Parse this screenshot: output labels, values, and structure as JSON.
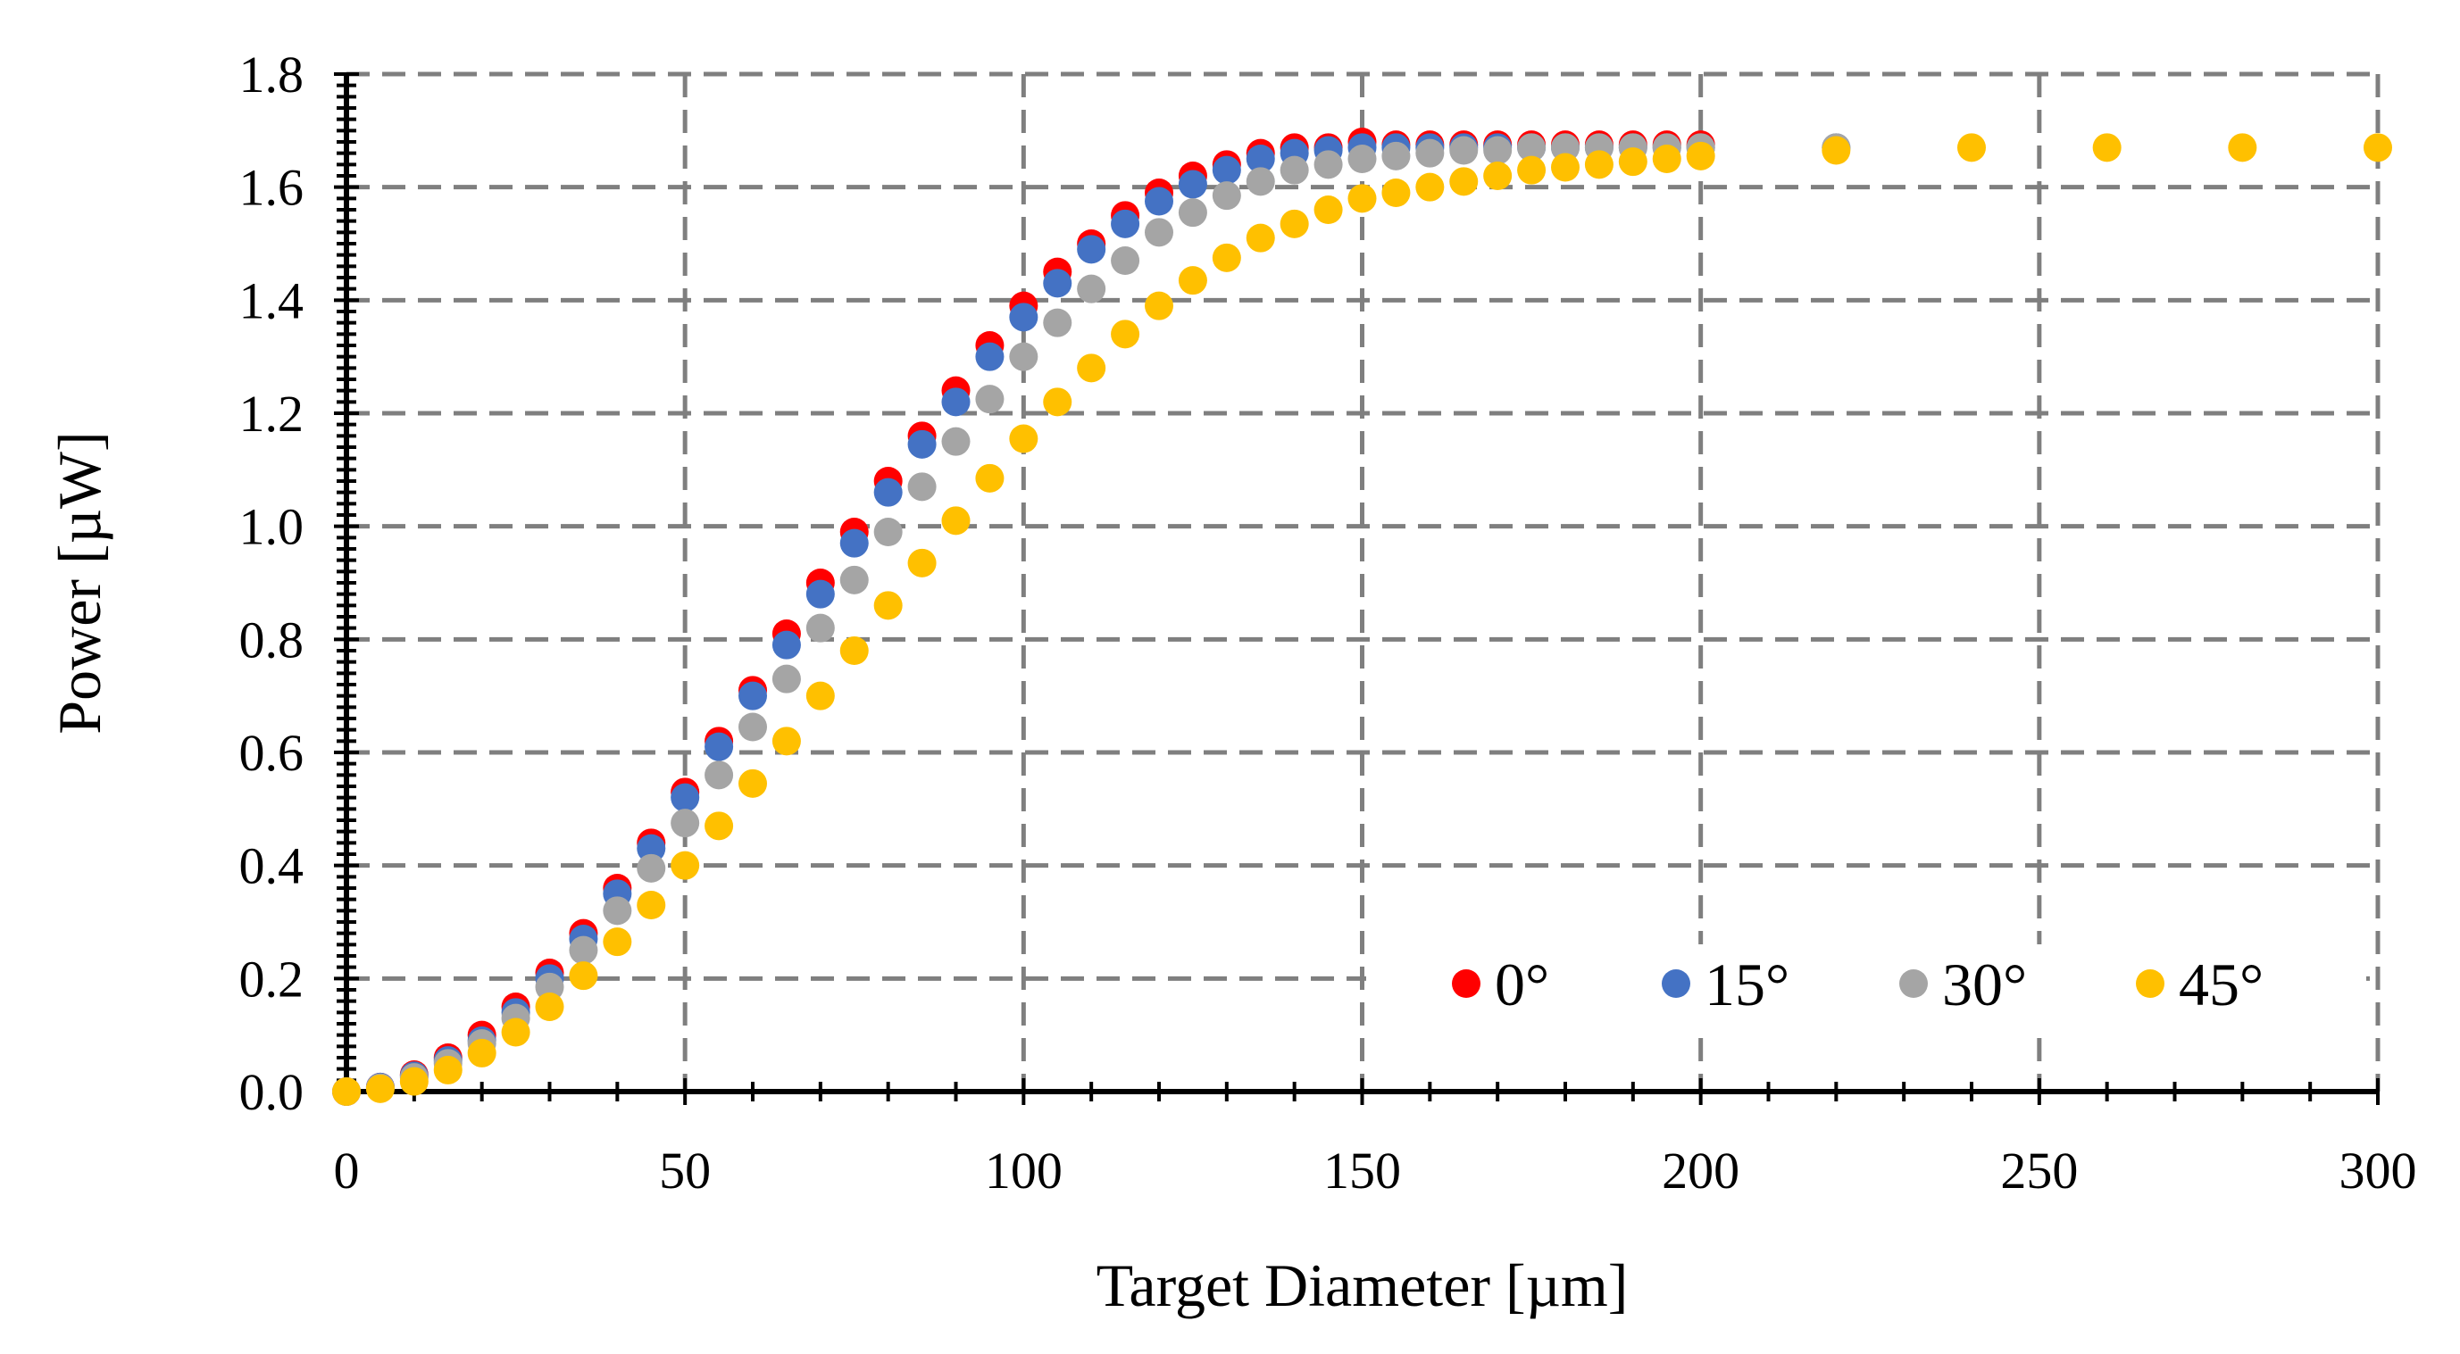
{
  "chart_data": {
    "type": "scatter",
    "title": "",
    "xlabel": "Target Diameter [µm]",
    "ylabel": "Power [µW]",
    "xlim": [
      0,
      300
    ],
    "ylim": [
      0,
      1.8
    ],
    "x_ticks": [
      0,
      50,
      100,
      150,
      200,
      250,
      300
    ],
    "x_tick_labels": [
      "0",
      "50",
      "100",
      "150",
      "200",
      "250",
      "300"
    ],
    "y_ticks": [
      0,
      0.2,
      0.4,
      0.6,
      0.8,
      1.0,
      1.2,
      1.4,
      1.6,
      1.8
    ],
    "y_tick_labels": [
      "0.0",
      "0.2",
      "0.4",
      "0.6",
      "0.8",
      "1.0",
      "1.2",
      "1.4",
      "1.6",
      "1.8"
    ],
    "grid": true,
    "legend_position": "bottom-right",
    "series": [
      {
        "name": "0°",
        "color": "#ff0000",
        "x": [
          0,
          5,
          10,
          15,
          20,
          25,
          30,
          35,
          40,
          45,
          50,
          55,
          60,
          65,
          70,
          75,
          80,
          85,
          90,
          95,
          100,
          105,
          110,
          115,
          120,
          125,
          130,
          135,
          140,
          145,
          150,
          155,
          160,
          165,
          170,
          175,
          180,
          185,
          190,
          195,
          200
        ],
        "y": [
          0.0,
          0.008,
          0.03,
          0.06,
          0.1,
          0.15,
          0.21,
          0.28,
          0.36,
          0.44,
          0.53,
          0.62,
          0.71,
          0.81,
          0.9,
          0.99,
          1.08,
          1.16,
          1.24,
          1.32,
          1.39,
          1.45,
          1.5,
          1.55,
          1.59,
          1.62,
          1.64,
          1.66,
          1.67,
          1.67,
          1.68,
          1.675,
          1.675,
          1.675,
          1.675,
          1.675,
          1.675,
          1.675,
          1.675,
          1.675,
          1.675
        ]
      },
      {
        "name": "15°",
        "color": "#4472c4",
        "x": [
          0,
          5,
          10,
          15,
          20,
          25,
          30,
          35,
          40,
          45,
          50,
          55,
          60,
          65,
          70,
          75,
          80,
          85,
          90,
          95,
          100,
          105,
          110,
          115,
          120,
          125,
          130,
          135,
          140,
          145,
          150,
          155,
          160,
          165,
          170,
          175,
          180,
          185,
          190,
          195,
          200,
          220
        ],
        "y": [
          0.0,
          0.008,
          0.028,
          0.055,
          0.09,
          0.14,
          0.2,
          0.27,
          0.35,
          0.43,
          0.52,
          0.61,
          0.7,
          0.79,
          0.88,
          0.97,
          1.06,
          1.145,
          1.22,
          1.3,
          1.37,
          1.43,
          1.49,
          1.535,
          1.575,
          1.605,
          1.63,
          1.65,
          1.66,
          1.665,
          1.67,
          1.67,
          1.67,
          1.67,
          1.67,
          1.67,
          1.67,
          1.67,
          1.67,
          1.67,
          1.67,
          1.67
        ]
      },
      {
        "name": "30°",
        "color": "#a5a5a5",
        "x": [
          0,
          5,
          10,
          15,
          20,
          25,
          30,
          35,
          40,
          45,
          50,
          55,
          60,
          65,
          70,
          75,
          80,
          85,
          90,
          95,
          100,
          105,
          110,
          115,
          120,
          125,
          130,
          135,
          140,
          145,
          150,
          155,
          160,
          165,
          170,
          175,
          180,
          185,
          190,
          195,
          200,
          220
        ],
        "y": [
          0.0,
          0.007,
          0.025,
          0.05,
          0.085,
          0.13,
          0.185,
          0.25,
          0.32,
          0.395,
          0.475,
          0.56,
          0.645,
          0.73,
          0.82,
          0.905,
          0.99,
          1.07,
          1.15,
          1.225,
          1.3,
          1.36,
          1.42,
          1.47,
          1.52,
          1.555,
          1.585,
          1.61,
          1.63,
          1.64,
          1.65,
          1.655,
          1.66,
          1.665,
          1.665,
          1.67,
          1.67,
          1.67,
          1.67,
          1.67,
          1.67,
          1.67
        ]
      },
      {
        "name": "45°",
        "color": "#ffc000",
        "x": [
          0,
          5,
          10,
          15,
          20,
          25,
          30,
          35,
          40,
          45,
          50,
          55,
          60,
          65,
          70,
          75,
          80,
          85,
          90,
          95,
          100,
          105,
          110,
          115,
          120,
          125,
          130,
          135,
          140,
          145,
          150,
          155,
          160,
          165,
          170,
          175,
          180,
          185,
          190,
          195,
          200,
          220,
          240,
          260,
          280,
          300
        ],
        "y": [
          0.0,
          0.005,
          0.018,
          0.038,
          0.068,
          0.105,
          0.15,
          0.205,
          0.265,
          0.33,
          0.4,
          0.47,
          0.545,
          0.62,
          0.7,
          0.78,
          0.86,
          0.935,
          1.01,
          1.085,
          1.155,
          1.22,
          1.28,
          1.34,
          1.39,
          1.435,
          1.475,
          1.51,
          1.535,
          1.56,
          1.58,
          1.59,
          1.6,
          1.61,
          1.62,
          1.63,
          1.635,
          1.64,
          1.645,
          1.65,
          1.655,
          1.665,
          1.67,
          1.67,
          1.67,
          1.67
        ]
      }
    ]
  }
}
